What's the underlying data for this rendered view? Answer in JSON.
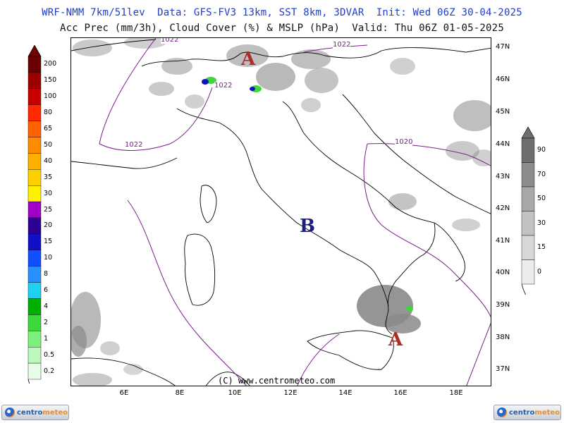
{
  "header": {
    "line1": "WRF-NMM 7km/51lev  Data: GFS-FV3 13km, SST 8km, 3DVAR  Init: Wed 06Z 30-04-2025",
    "line2": "Acc Prec (mm/3h), Cloud Cover (%) & MSLP (hPa)  Valid: Thu 06Z 01-05-2025"
  },
  "map": {
    "lat_labels": [
      "47N",
      "46N",
      "45N",
      "44N",
      "43N",
      "42N",
      "41N",
      "40N",
      "39N",
      "38N",
      "37N"
    ],
    "lon_labels": [
      "6E",
      "8E",
      "10E",
      "12E",
      "14E",
      "16E",
      "18E"
    ],
    "watermark": "(C) www.centrometeo.com",
    "pressure_centers": [
      {
        "symbol": "A",
        "meaning": "high",
        "color": "#b02a26"
      },
      {
        "symbol": "B",
        "meaning": "low",
        "color": "#1c1f7a"
      },
      {
        "symbol": "A",
        "meaning": "high",
        "color": "#b02a26"
      }
    ],
    "isobars": [
      {
        "label": "1022"
      },
      {
        "label": "1022"
      },
      {
        "label": "1022"
      },
      {
        "label": "1022"
      },
      {
        "label": "1020"
      }
    ],
    "isobar_color": "#7a1e8c",
    "coastline_color": "#000000",
    "cloud_color": "#8a8a8a"
  },
  "precip_legend": {
    "entries": [
      {
        "label": "200",
        "color": "#6a0000"
      },
      {
        "label": "150",
        "color": "#9c0000"
      },
      {
        "label": "100",
        "color": "#c80000"
      },
      {
        "label": "80",
        "color": "#ff2a00"
      },
      {
        "label": "65",
        "color": "#ff6000"
      },
      {
        "label": "50",
        "color": "#ff8c00"
      },
      {
        "label": "40",
        "color": "#ffb000"
      },
      {
        "label": "35",
        "color": "#ffd000"
      },
      {
        "label": "30",
        "color": "#fff200"
      },
      {
        "label": "25",
        "color": "#a000c8"
      },
      {
        "label": "20",
        "color": "#2c0090"
      },
      {
        "label": "15",
        "color": "#1010c8"
      },
      {
        "label": "10",
        "color": "#1050ff"
      },
      {
        "label": "8",
        "color": "#2890ff"
      },
      {
        "label": "6",
        "color": "#20d0f0"
      },
      {
        "label": "4",
        "color": "#00b000"
      },
      {
        "label": "2",
        "color": "#3cd83c"
      },
      {
        "label": "1",
        "color": "#7cf07c"
      },
      {
        "label": "0.5",
        "color": "#bcf8bc"
      },
      {
        "label": "0.2",
        "color": "#e6fce6"
      }
    ]
  },
  "cloud_legend": {
    "entries": [
      {
        "label": "90",
        "color": "#6e6e6e"
      },
      {
        "label": "70",
        "color": "#8c8c8c"
      },
      {
        "label": "50",
        "color": "#a8a8a8"
      },
      {
        "label": "30",
        "color": "#c2c2c2"
      },
      {
        "label": "15",
        "color": "#d8d8d8"
      },
      {
        "label": "0",
        "color": "#ececec"
      }
    ]
  },
  "logos": {
    "part1": "centro",
    "part2": "meteo"
  }
}
